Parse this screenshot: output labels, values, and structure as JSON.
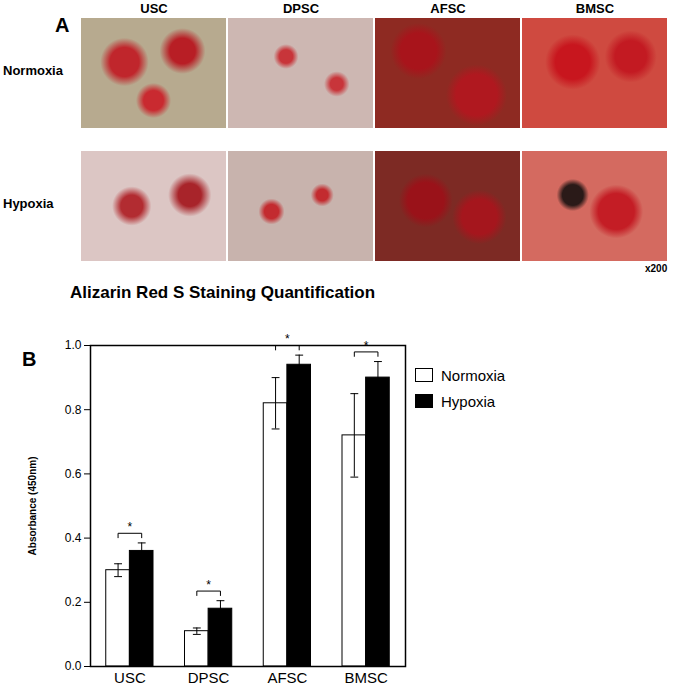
{
  "panel_a": {
    "label": "A",
    "columns": [
      "USC",
      "DPSC",
      "AFSC",
      "BMSC"
    ],
    "rows": [
      "Normoxia",
      "Hypoxia"
    ],
    "magnification": "x200"
  },
  "chart_data": {
    "type": "bar",
    "panel_label": "B",
    "title": "Alizarin Red S Staining Quantification",
    "categories": [
      "USC",
      "DPSC",
      "AFSC",
      "BMSC"
    ],
    "series": [
      {
        "name": "Normoxia",
        "color": "#ffffff",
        "values": [
          0.3,
          0.11,
          0.82,
          0.72
        ],
        "errors": [
          0.02,
          0.01,
          0.08,
          0.13
        ]
      },
      {
        "name": "Hypoxia",
        "color": "#000000",
        "values": [
          0.36,
          0.18,
          0.94,
          0.9
        ],
        "errors": [
          0.025,
          0.025,
          0.03,
          0.05
        ]
      }
    ],
    "y_label": "Absorbance (450nm)",
    "ylim": [
      0,
      1
    ],
    "yticks": [
      {
        "value": 0,
        "label": "0.0"
      },
      {
        "value": 0.2,
        "label": "0.2"
      },
      {
        "value": 0.4,
        "label": "0.4"
      },
      {
        "value": 0.6,
        "label": "0.6"
      },
      {
        "value": 0.8,
        "label": "0.8"
      },
      {
        "value": 1,
        "label": "1.0"
      }
    ],
    "legend": "right",
    "annotations": [
      {
        "category": "USC",
        "text": "*"
      },
      {
        "category": "DPSC",
        "text": "*"
      },
      {
        "category": "AFSC",
        "text": "*"
      },
      {
        "category": "BMSC",
        "text": "*"
      }
    ]
  }
}
